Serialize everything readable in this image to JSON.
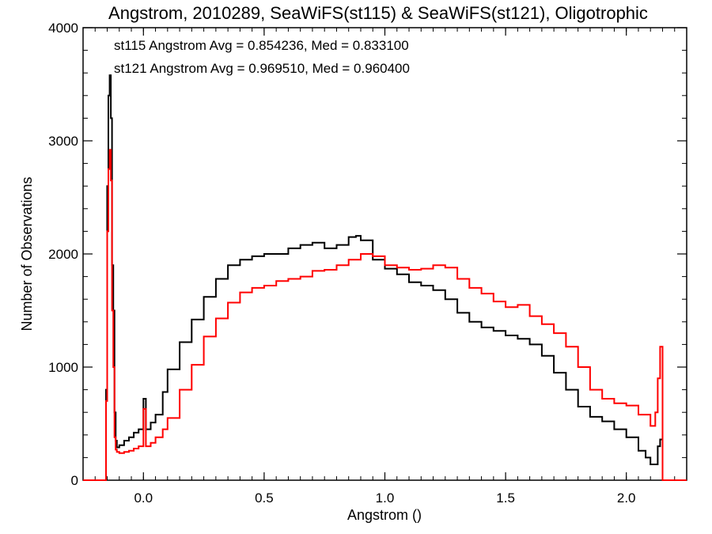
{
  "chart_data": {
    "type": "line",
    "title": "Angstrom, 2010289, SeaWiFS(st115) & SeaWiFS(st121), Oligotrophic",
    "xlabel": "Angstrom ()",
    "ylabel": "Number of Observations",
    "xlim": [
      -0.25,
      2.25
    ],
    "ylim": [
      0,
      4000
    ],
    "x_ticks": [
      0.0,
      0.5,
      1.0,
      1.5,
      2.0
    ],
    "x_tick_labels": [
      "0.0",
      "0.5",
      "1.0",
      "1.5",
      "2.0"
    ],
    "y_ticks": [
      0,
      1000,
      2000,
      3000,
      4000
    ],
    "y_tick_labels": [
      "0",
      "1000",
      "2000",
      "3000",
      "4000"
    ],
    "grid": false,
    "step": true,
    "series": [
      {
        "color": "#000000",
        "x": [
          -0.25,
          -0.16,
          -0.155,
          -0.15,
          -0.145,
          -0.14,
          -0.135,
          -0.13,
          -0.125,
          -0.12,
          -0.115,
          -0.11,
          -0.1,
          -0.08,
          -0.06,
          -0.04,
          -0.02,
          0.0,
          0.01,
          0.03,
          0.05,
          0.08,
          0.1,
          0.15,
          0.2,
          0.25,
          0.3,
          0.35,
          0.4,
          0.45,
          0.5,
          0.55,
          0.6,
          0.65,
          0.7,
          0.75,
          0.8,
          0.85,
          0.88,
          0.9,
          0.95,
          1.0,
          1.05,
          1.1,
          1.15,
          1.2,
          1.25,
          1.3,
          1.35,
          1.4,
          1.45,
          1.5,
          1.55,
          1.6,
          1.65,
          1.7,
          1.75,
          1.8,
          1.85,
          1.9,
          1.95,
          2.0,
          2.05,
          2.08,
          2.1,
          2.13,
          2.14,
          2.15,
          2.25
        ],
        "values": [
          0,
          0,
          800,
          2600,
          3400,
          3580,
          3200,
          1900,
          1500,
          600,
          350,
          290,
          310,
          350,
          380,
          420,
          450,
          720,
          450,
          510,
          580,
          780,
          980,
          1220,
          1420,
          1620,
          1780,
          1900,
          1950,
          1980,
          2000,
          2000,
          2050,
          2080,
          2100,
          2050,
          2080,
          2150,
          2160,
          2120,
          1950,
          1870,
          1820,
          1750,
          1720,
          1680,
          1600,
          1480,
          1400,
          1350,
          1320,
          1280,
          1250,
          1200,
          1100,
          950,
          800,
          650,
          560,
          520,
          450,
          380,
          260,
          200,
          140,
          300,
          360,
          0,
          0
        ]
      },
      {
        "color": "#ff0000",
        "x": [
          -0.25,
          -0.16,
          -0.155,
          -0.15,
          -0.145,
          -0.14,
          -0.135,
          -0.13,
          -0.125,
          -0.12,
          -0.115,
          -0.11,
          -0.1,
          -0.08,
          -0.06,
          -0.04,
          -0.02,
          0.0,
          0.01,
          0.03,
          0.05,
          0.08,
          0.1,
          0.15,
          0.2,
          0.25,
          0.3,
          0.35,
          0.4,
          0.45,
          0.5,
          0.55,
          0.6,
          0.65,
          0.7,
          0.75,
          0.8,
          0.85,
          0.9,
          0.95,
          1.0,
          1.05,
          1.1,
          1.15,
          1.2,
          1.25,
          1.3,
          1.35,
          1.4,
          1.45,
          1.5,
          1.55,
          1.6,
          1.65,
          1.7,
          1.75,
          1.8,
          1.85,
          1.9,
          1.95,
          2.0,
          2.05,
          2.1,
          2.12,
          2.13,
          2.14,
          2.15,
          2.25
        ],
        "values": [
          0,
          0,
          700,
          2200,
          2750,
          2920,
          2650,
          1500,
          1000,
          380,
          270,
          250,
          240,
          250,
          260,
          280,
          300,
          630,
          300,
          330,
          380,
          450,
          550,
          800,
          1020,
          1270,
          1430,
          1570,
          1660,
          1700,
          1720,
          1760,
          1780,
          1800,
          1850,
          1860,
          1900,
          1950,
          2000,
          1980,
          1900,
          1880,
          1860,
          1870,
          1900,
          1880,
          1780,
          1700,
          1650,
          1580,
          1530,
          1550,
          1450,
          1380,
          1300,
          1180,
          1000,
          800,
          720,
          680,
          660,
          580,
          480,
          600,
          900,
          1180,
          0,
          0
        ]
      }
    ],
    "annotations": [
      {
        "text": "st115 Angstrom Avg = 0.854236, Med = 0.833100",
        "color": "#000000"
      },
      {
        "text": "st121 Angstrom Avg = 0.969510, Med = 0.960400",
        "color": "#ff0000"
      }
    ]
  }
}
